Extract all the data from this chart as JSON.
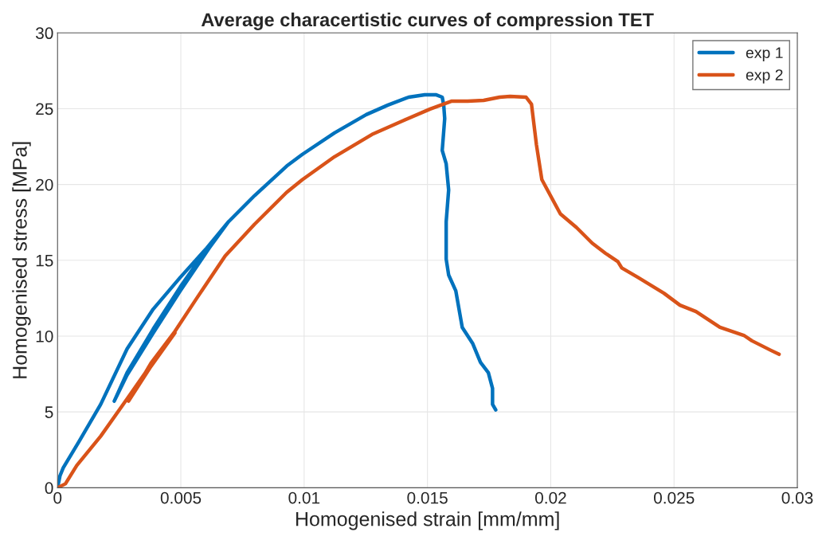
{
  "chart_data": {
    "type": "line",
    "title": "Average characertistic curves of compression TET",
    "xlabel": "Homogenised strain [mm/mm]",
    "ylabel": "Homogenised stress [MPa]",
    "xlim": [
      0,
      0.03
    ],
    "ylim": [
      0,
      30
    ],
    "xticks": [
      0,
      0.005,
      0.01,
      0.015,
      0.02,
      0.025,
      0.03
    ],
    "yticks": [
      0,
      5,
      10,
      15,
      20,
      25,
      30
    ],
    "grid": true,
    "legend": "top right",
    "marker": "none",
    "line_style": "solid",
    "series": [
      {
        "name": "exp 1",
        "color": "#0072bd",
        "x": [
          0,
          0.0001,
          0.00023,
          0.00087,
          0.00175,
          0.00282,
          0.00388,
          0.00498,
          0.00605,
          0.00693,
          0.00615,
          0.00498,
          0.00388,
          0.00282,
          0.0023,
          0.00282,
          0.00388,
          0.00498,
          0.00615,
          0.00693,
          0.00799,
          0.00929,
          0.00993,
          0.01123,
          0.01252,
          0.0134,
          0.01424,
          0.01489,
          0.01534,
          0.0156,
          0.01566,
          0.0157,
          0.0156,
          0.01576,
          0.01586,
          0.01576,
          0.01576,
          0.01586,
          0.01615,
          0.01641,
          0.01683,
          0.01715,
          0.01747,
          0.01764,
          0.01764,
          0.01777
        ],
        "values": [
          0,
          0.79,
          1.31,
          3.04,
          5.5,
          9.16,
          11.78,
          13.88,
          15.81,
          17.54,
          15.81,
          12.99,
          10.21,
          7.44,
          5.71,
          7.59,
          10.47,
          13.25,
          15.97,
          17.54,
          19.27,
          21.21,
          21.99,
          23.4,
          24.61,
          25.24,
          25.76,
          25.92,
          25.92,
          25.76,
          25.24,
          24.35,
          22.25,
          21.36,
          19.64,
          17.54,
          15.08,
          14.03,
          12.99,
          10.58,
          9.53,
          8.27,
          7.59,
          6.55,
          5.5,
          5.13
        ]
      },
      {
        "name": "exp 2",
        "color": "#d95319",
        "x": [
          0,
          0.00032,
          0.00078,
          0.00175,
          0.00282,
          0.00379,
          0.00476,
          0.00379,
          0.00288,
          0.00379,
          0.00476,
          0.00563,
          0.0068,
          0.00799,
          0.00929,
          0.00993,
          0.01123,
          0.01275,
          0.01405,
          0.01511,
          0.01599,
          0.01663,
          0.01728,
          0.01793,
          0.01835,
          0.019,
          0.01922,
          0.01942,
          0.01964,
          0.02039,
          0.02104,
          0.02168,
          0.02223,
          0.02272,
          0.02288,
          0.02353,
          0.02459,
          0.02524,
          0.02589,
          0.02686,
          0.02783,
          0.02816,
          0.02893,
          0.02926
        ],
        "values": [
          0,
          0.26,
          1.47,
          3.4,
          5.86,
          8.12,
          10.21,
          8.01,
          5.71,
          8.22,
          10.31,
          12.46,
          15.29,
          17.38,
          19.48,
          20.32,
          21.83,
          23.3,
          24.24,
          24.98,
          25.5,
          25.5,
          25.55,
          25.76,
          25.81,
          25.76,
          25.29,
          22.62,
          20.32,
          18.06,
          17.17,
          16.13,
          15.45,
          14.92,
          14.5,
          13.88,
          12.83,
          12.04,
          11.62,
          10.58,
          10.05,
          9.69,
          9.06,
          8.8
        ]
      }
    ]
  }
}
